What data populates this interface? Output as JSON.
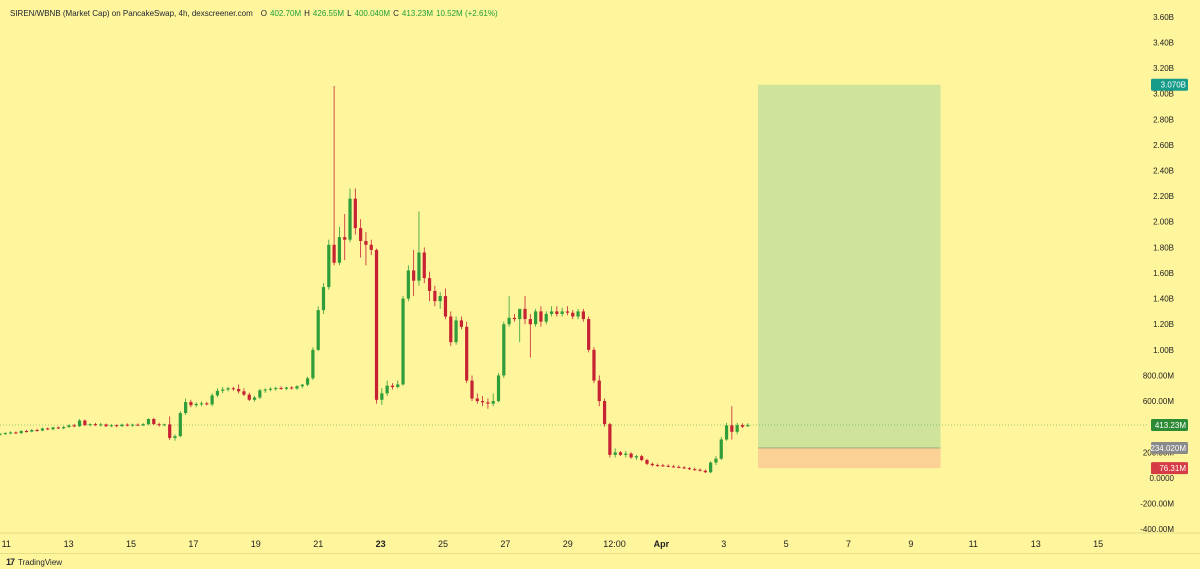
{
  "legend": {
    "pair": "SIREN/WBNB (Market Cap) on PancakeSwap, 4h, dexscreener.com",
    "open_key": "O",
    "open_val": "402.70M",
    "high_key": "H",
    "high_val": "426.55M",
    "low_key": "L",
    "low_val": "400.040M",
    "close_key": "C",
    "close_val": "413.23M",
    "change": "10.52M (+2.61%)"
  },
  "footer": {
    "logo": "17",
    "brand": "TradingView"
  },
  "colors": {
    "background": "#fef59c",
    "up": "#2f9e3a",
    "down": "#c62233",
    "profit_zone": "#cfe39b",
    "loss_zone": "#fbd195",
    "badge_target": "#179c8a",
    "badge_price": "#2e8b35",
    "badge_entry": "#8a8a8a",
    "badge_stop": "#d63c45"
  },
  "chart_data": {
    "type": "candlestick",
    "y_unit": "market cap (USD)",
    "ylim": [
      -430000000,
      3700000000
    ],
    "y_ticks": [
      {
        "v": 3600000000,
        "label": "3.60B"
      },
      {
        "v": 3400000000,
        "label": "3.40B"
      },
      {
        "v": 3200000000,
        "label": "3.20B"
      },
      {
        "v": 3000000000,
        "label": "3.00B"
      },
      {
        "v": 2800000000,
        "label": "2.80B"
      },
      {
        "v": 2600000000,
        "label": "2.60B"
      },
      {
        "v": 2400000000,
        "label": "2.40B"
      },
      {
        "v": 2200000000,
        "label": "2.20B"
      },
      {
        "v": 2000000000,
        "label": "2.00B"
      },
      {
        "v": 1800000000,
        "label": "1.80B"
      },
      {
        "v": 1600000000,
        "label": "1.60B"
      },
      {
        "v": 1400000000,
        "label": "1.40B"
      },
      {
        "v": 1200000000,
        "label": "1.20B"
      },
      {
        "v": 1000000000,
        "label": "1.00B"
      },
      {
        "v": 800000000,
        "label": "800.00M"
      },
      {
        "v": 600000000,
        "label": "600.00M"
      },
      {
        "v": 200000000,
        "label": "200.00M"
      },
      {
        "v": 0,
        "label": "0.0000"
      },
      {
        "v": -200000000,
        "label": "-200.00M"
      },
      {
        "v": -400000000,
        "label": "-400.00M"
      }
    ],
    "x_ticks": [
      {
        "day": 11,
        "label": "11"
      },
      {
        "day": 13,
        "label": "13"
      },
      {
        "day": 15,
        "label": "15"
      },
      {
        "day": 17,
        "label": "17"
      },
      {
        "day": 19,
        "label": "19"
      },
      {
        "day": 21,
        "label": "21"
      },
      {
        "day": 23,
        "label": "23",
        "bold": true
      },
      {
        "day": 25,
        "label": "25"
      },
      {
        "day": 27,
        "label": "27"
      },
      {
        "day": 29,
        "label": "29"
      },
      {
        "day": 30.5,
        "label": "12:00"
      },
      {
        "day": 32,
        "label": "Apr",
        "bold": true
      },
      {
        "day": 34,
        "label": "3"
      },
      {
        "day": 36,
        "label": "5"
      },
      {
        "day": 38,
        "label": "7"
      },
      {
        "day": 40,
        "label": "9"
      },
      {
        "day": 42,
        "label": "11"
      },
      {
        "day": 44,
        "label": "13"
      },
      {
        "day": 46,
        "label": "15"
      }
    ],
    "x_range_days": [
      10.8,
      47.6
    ],
    "candle_interval_days": 0.1667,
    "candles": [
      {
        "d": 10.8,
        "o": 340,
        "h": 352,
        "l": 330,
        "c": 345
      },
      {
        "d": 10.97,
        "o": 345,
        "h": 356,
        "l": 336,
        "c": 350
      },
      {
        "d": 11.14,
        "o": 350,
        "h": 364,
        "l": 340,
        "c": 355
      },
      {
        "d": 11.31,
        "o": 355,
        "h": 362,
        "l": 344,
        "c": 350
      },
      {
        "d": 11.48,
        "o": 350,
        "h": 372,
        "l": 342,
        "c": 366
      },
      {
        "d": 11.65,
        "o": 366,
        "h": 376,
        "l": 354,
        "c": 362
      },
      {
        "d": 11.82,
        "o": 362,
        "h": 382,
        "l": 356,
        "c": 374
      },
      {
        "d": 11.99,
        "o": 374,
        "h": 384,
        "l": 362,
        "c": 370
      },
      {
        "d": 12.16,
        "o": 370,
        "h": 392,
        "l": 364,
        "c": 386
      },
      {
        "d": 12.33,
        "o": 386,
        "h": 394,
        "l": 374,
        "c": 380
      },
      {
        "d": 12.5,
        "o": 380,
        "h": 400,
        "l": 372,
        "c": 394
      },
      {
        "d": 12.67,
        "o": 394,
        "h": 402,
        "l": 382,
        "c": 388
      },
      {
        "d": 12.84,
        "o": 388,
        "h": 404,
        "l": 380,
        "c": 398
      },
      {
        "d": 13.01,
        "o": 398,
        "h": 418,
        "l": 390,
        "c": 410
      },
      {
        "d": 13.18,
        "o": 410,
        "h": 422,
        "l": 396,
        "c": 404
      },
      {
        "d": 13.35,
        "o": 404,
        "h": 460,
        "l": 398,
        "c": 448
      },
      {
        "d": 13.52,
        "o": 448,
        "h": 456,
        "l": 406,
        "c": 412
      },
      {
        "d": 13.69,
        "o": 412,
        "h": 426,
        "l": 402,
        "c": 420
      },
      {
        "d": 13.86,
        "o": 420,
        "h": 430,
        "l": 404,
        "c": 414
      },
      {
        "d": 14.03,
        "o": 414,
        "h": 430,
        "l": 402,
        "c": 418
      },
      {
        "d": 14.2,
        "o": 418,
        "h": 424,
        "l": 398,
        "c": 404
      },
      {
        "d": 14.37,
        "o": 404,
        "h": 420,
        "l": 396,
        "c": 412
      },
      {
        "d": 14.54,
        "o": 412,
        "h": 418,
        "l": 396,
        "c": 404
      },
      {
        "d": 14.71,
        "o": 404,
        "h": 424,
        "l": 398,
        "c": 416
      },
      {
        "d": 14.88,
        "o": 416,
        "h": 426,
        "l": 402,
        "c": 408
      },
      {
        "d": 15.05,
        "o": 408,
        "h": 424,
        "l": 400,
        "c": 416
      },
      {
        "d": 15.22,
        "o": 416,
        "h": 426,
        "l": 404,
        "c": 410
      },
      {
        "d": 15.39,
        "o": 410,
        "h": 428,
        "l": 404,
        "c": 420
      },
      {
        "d": 15.56,
        "o": 420,
        "h": 466,
        "l": 412,
        "c": 460
      },
      {
        "d": 15.73,
        "o": 460,
        "h": 470,
        "l": 414,
        "c": 420
      },
      {
        "d": 15.9,
        "o": 420,
        "h": 432,
        "l": 400,
        "c": 412
      },
      {
        "d": 16.07,
        "o": 412,
        "h": 424,
        "l": 404,
        "c": 418
      },
      {
        "d": 16.24,
        "o": 418,
        "h": 480,
        "l": 296,
        "c": 312
      },
      {
        "d": 16.41,
        "o": 312,
        "h": 340,
        "l": 290,
        "c": 326
      },
      {
        "d": 16.58,
        "o": 326,
        "h": 520,
        "l": 318,
        "c": 506
      },
      {
        "d": 16.75,
        "o": 506,
        "h": 620,
        "l": 492,
        "c": 592
      },
      {
        "d": 16.92,
        "o": 592,
        "h": 610,
        "l": 552,
        "c": 568
      },
      {
        "d": 17.09,
        "o": 568,
        "h": 590,
        "l": 552,
        "c": 578
      },
      {
        "d": 17.26,
        "o": 578,
        "h": 598,
        "l": 560,
        "c": 582
      },
      {
        "d": 17.43,
        "o": 582,
        "h": 594,
        "l": 566,
        "c": 574
      },
      {
        "d": 17.6,
        "o": 574,
        "h": 660,
        "l": 560,
        "c": 644
      },
      {
        "d": 17.77,
        "o": 644,
        "h": 700,
        "l": 630,
        "c": 680
      },
      {
        "d": 17.94,
        "o": 680,
        "h": 710,
        "l": 662,
        "c": 690
      },
      {
        "d": 18.11,
        "o": 690,
        "h": 712,
        "l": 676,
        "c": 700
      },
      {
        "d": 18.28,
        "o": 700,
        "h": 712,
        "l": 680,
        "c": 694
      },
      {
        "d": 18.45,
        "o": 694,
        "h": 730,
        "l": 660,
        "c": 676
      },
      {
        "d": 18.62,
        "o": 676,
        "h": 700,
        "l": 640,
        "c": 650
      },
      {
        "d": 18.79,
        "o": 650,
        "h": 666,
        "l": 600,
        "c": 610
      },
      {
        "d": 18.96,
        "o": 610,
        "h": 640,
        "l": 596,
        "c": 628
      },
      {
        "d": 19.13,
        "o": 628,
        "h": 696,
        "l": 616,
        "c": 684
      },
      {
        "d": 19.3,
        "o": 684,
        "h": 700,
        "l": 664,
        "c": 690
      },
      {
        "d": 19.47,
        "o": 690,
        "h": 708,
        "l": 676,
        "c": 696
      },
      {
        "d": 19.64,
        "o": 696,
        "h": 712,
        "l": 680,
        "c": 702
      },
      {
        "d": 19.81,
        "o": 702,
        "h": 716,
        "l": 688,
        "c": 696
      },
      {
        "d": 19.98,
        "o": 696,
        "h": 712,
        "l": 684,
        "c": 706
      },
      {
        "d": 20.15,
        "o": 706,
        "h": 716,
        "l": 690,
        "c": 698
      },
      {
        "d": 20.32,
        "o": 698,
        "h": 724,
        "l": 688,
        "c": 716
      },
      {
        "d": 20.49,
        "o": 716,
        "h": 734,
        "l": 700,
        "c": 728
      },
      {
        "d": 20.66,
        "o": 728,
        "h": 790,
        "l": 716,
        "c": 778
      },
      {
        "d": 20.83,
        "o": 778,
        "h": 1020,
        "l": 764,
        "c": 1000
      },
      {
        "d": 21.0,
        "o": 1000,
        "h": 1340,
        "l": 990,
        "c": 1310
      },
      {
        "d": 21.17,
        "o": 1310,
        "h": 1520,
        "l": 1280,
        "c": 1490
      },
      {
        "d": 21.34,
        "o": 1490,
        "h": 1860,
        "l": 1470,
        "c": 1820
      },
      {
        "d": 21.51,
        "o": 1820,
        "h": 3060,
        "l": 1660,
        "c": 1680
      },
      {
        "d": 21.68,
        "o": 1680,
        "h": 1960,
        "l": 1660,
        "c": 1880
      },
      {
        "d": 21.85,
        "o": 1880,
        "h": 2060,
        "l": 1700,
        "c": 1860
      },
      {
        "d": 22.02,
        "o": 1860,
        "h": 2260,
        "l": 1840,
        "c": 2180
      },
      {
        "d": 22.19,
        "o": 2180,
        "h": 2260,
        "l": 1900,
        "c": 1950
      },
      {
        "d": 22.36,
        "o": 1950,
        "h": 2020,
        "l": 1720,
        "c": 1850
      },
      {
        "d": 22.53,
        "o": 1850,
        "h": 1920,
        "l": 1660,
        "c": 1820
      },
      {
        "d": 22.7,
        "o": 1820,
        "h": 1860,
        "l": 1740,
        "c": 1780
      },
      {
        "d": 22.87,
        "o": 1780,
        "h": 1790,
        "l": 580,
        "c": 610
      },
      {
        "d": 23.04,
        "o": 610,
        "h": 700,
        "l": 570,
        "c": 660
      },
      {
        "d": 23.21,
        "o": 660,
        "h": 760,
        "l": 640,
        "c": 720
      },
      {
        "d": 23.38,
        "o": 720,
        "h": 740,
        "l": 690,
        "c": 710
      },
      {
        "d": 23.55,
        "o": 710,
        "h": 760,
        "l": 700,
        "c": 730
      },
      {
        "d": 23.72,
        "o": 730,
        "h": 1420,
        "l": 720,
        "c": 1400
      },
      {
        "d": 23.89,
        "o": 1400,
        "h": 1660,
        "l": 1380,
        "c": 1620
      },
      {
        "d": 24.06,
        "o": 1620,
        "h": 1780,
        "l": 1420,
        "c": 1540
      },
      {
        "d": 24.23,
        "o": 1540,
        "h": 2080,
        "l": 1500,
        "c": 1760
      },
      {
        "d": 24.4,
        "o": 1760,
        "h": 1800,
        "l": 1520,
        "c": 1560
      },
      {
        "d": 24.57,
        "o": 1560,
        "h": 1610,
        "l": 1380,
        "c": 1460
      },
      {
        "d": 24.74,
        "o": 1460,
        "h": 1500,
        "l": 1340,
        "c": 1380
      },
      {
        "d": 24.91,
        "o": 1380,
        "h": 1450,
        "l": 1320,
        "c": 1420
      },
      {
        "d": 25.08,
        "o": 1420,
        "h": 1480,
        "l": 1240,
        "c": 1260
      },
      {
        "d": 25.25,
        "o": 1260,
        "h": 1300,
        "l": 1030,
        "c": 1060
      },
      {
        "d": 25.42,
        "o": 1060,
        "h": 1260,
        "l": 1040,
        "c": 1230
      },
      {
        "d": 25.59,
        "o": 1230,
        "h": 1260,
        "l": 1160,
        "c": 1180
      },
      {
        "d": 25.76,
        "o": 1180,
        "h": 1220,
        "l": 740,
        "c": 760
      },
      {
        "d": 25.93,
        "o": 760,
        "h": 800,
        "l": 600,
        "c": 620
      },
      {
        "d": 26.1,
        "o": 620,
        "h": 660,
        "l": 580,
        "c": 600
      },
      {
        "d": 26.27,
        "o": 600,
        "h": 640,
        "l": 560,
        "c": 590
      },
      {
        "d": 26.44,
        "o": 590,
        "h": 620,
        "l": 540,
        "c": 580
      },
      {
        "d": 26.61,
        "o": 580,
        "h": 660,
        "l": 560,
        "c": 600
      },
      {
        "d": 26.78,
        "o": 600,
        "h": 820,
        "l": 590,
        "c": 800
      },
      {
        "d": 26.95,
        "o": 800,
        "h": 1220,
        "l": 780,
        "c": 1200
      },
      {
        "d": 27.12,
        "o": 1200,
        "h": 1420,
        "l": 1180,
        "c": 1250
      },
      {
        "d": 27.29,
        "o": 1250,
        "h": 1280,
        "l": 1220,
        "c": 1240
      },
      {
        "d": 27.46,
        "o": 1240,
        "h": 1300,
        "l": 1060,
        "c": 1320
      },
      {
        "d": 27.63,
        "o": 1320,
        "h": 1420,
        "l": 1200,
        "c": 1240
      },
      {
        "d": 27.8,
        "o": 1240,
        "h": 1280,
        "l": 940,
        "c": 1200
      },
      {
        "d": 27.97,
        "o": 1200,
        "h": 1320,
        "l": 1180,
        "c": 1300
      },
      {
        "d": 28.14,
        "o": 1300,
        "h": 1340,
        "l": 1180,
        "c": 1220
      },
      {
        "d": 28.31,
        "o": 1220,
        "h": 1300,
        "l": 1200,
        "c": 1280
      },
      {
        "d": 28.48,
        "o": 1280,
        "h": 1340,
        "l": 1260,
        "c": 1300
      },
      {
        "d": 28.65,
        "o": 1300,
        "h": 1340,
        "l": 1260,
        "c": 1280
      },
      {
        "d": 28.82,
        "o": 1280,
        "h": 1330,
        "l": 1260,
        "c": 1300
      },
      {
        "d": 28.99,
        "o": 1300,
        "h": 1340,
        "l": 1270,
        "c": 1290
      },
      {
        "d": 29.16,
        "o": 1290,
        "h": 1310,
        "l": 1240,
        "c": 1260
      },
      {
        "d": 29.33,
        "o": 1260,
        "h": 1320,
        "l": 1240,
        "c": 1300
      },
      {
        "d": 29.5,
        "o": 1300,
        "h": 1320,
        "l": 1220,
        "c": 1240
      },
      {
        "d": 29.67,
        "o": 1240,
        "h": 1260,
        "l": 980,
        "c": 1000
      },
      {
        "d": 29.84,
        "o": 1000,
        "h": 1020,
        "l": 740,
        "c": 760
      },
      {
        "d": 30.01,
        "o": 760,
        "h": 800,
        "l": 560,
        "c": 600
      },
      {
        "d": 30.18,
        "o": 600,
        "h": 620,
        "l": 400,
        "c": 420
      },
      {
        "d": 30.35,
        "o": 420,
        "h": 430,
        "l": 160,
        "c": 180
      },
      {
        "d": 30.52,
        "o": 180,
        "h": 230,
        "l": 160,
        "c": 200
      },
      {
        "d": 30.69,
        "o": 200,
        "h": 210,
        "l": 170,
        "c": 180
      },
      {
        "d": 30.86,
        "o": 180,
        "h": 210,
        "l": 160,
        "c": 190
      },
      {
        "d": 31.03,
        "o": 190,
        "h": 200,
        "l": 150,
        "c": 160
      },
      {
        "d": 31.2,
        "o": 160,
        "h": 180,
        "l": 140,
        "c": 170
      },
      {
        "d": 31.37,
        "o": 170,
        "h": 180,
        "l": 130,
        "c": 140
      },
      {
        "d": 31.54,
        "o": 140,
        "h": 150,
        "l": 100,
        "c": 110
      },
      {
        "d": 31.71,
        "o": 110,
        "h": 120,
        "l": 90,
        "c": 100
      },
      {
        "d": 31.88,
        "o": 100,
        "h": 112,
        "l": 88,
        "c": 98
      },
      {
        "d": 32.05,
        "o": 98,
        "h": 110,
        "l": 86,
        "c": 94
      },
      {
        "d": 32.22,
        "o": 94,
        "h": 106,
        "l": 84,
        "c": 90
      },
      {
        "d": 32.39,
        "o": 90,
        "h": 102,
        "l": 80,
        "c": 86
      },
      {
        "d": 32.56,
        "o": 86,
        "h": 98,
        "l": 76,
        "c": 82
      },
      {
        "d": 32.73,
        "o": 82,
        "h": 92,
        "l": 70,
        "c": 76
      },
      {
        "d": 32.9,
        "o": 76,
        "h": 84,
        "l": 62,
        "c": 68
      },
      {
        "d": 33.07,
        "o": 68,
        "h": 80,
        "l": 56,
        "c": 64
      },
      {
        "d": 33.24,
        "o": 64,
        "h": 74,
        "l": 50,
        "c": 56
      },
      {
        "d": 33.41,
        "o": 56,
        "h": 66,
        "l": 40,
        "c": 44
      },
      {
        "d": 33.58,
        "o": 44,
        "h": 130,
        "l": 36,
        "c": 120
      },
      {
        "d": 33.75,
        "o": 120,
        "h": 170,
        "l": 100,
        "c": 150
      },
      {
        "d": 33.92,
        "o": 150,
        "h": 320,
        "l": 140,
        "c": 300
      },
      {
        "d": 34.09,
        "o": 300,
        "h": 430,
        "l": 290,
        "c": 410
      },
      {
        "d": 34.26,
        "o": 410,
        "h": 560,
        "l": 300,
        "c": 360
      },
      {
        "d": 34.43,
        "o": 360,
        "h": 430,
        "l": 340,
        "c": 412
      },
      {
        "d": 34.6,
        "o": 412,
        "h": 426,
        "l": 390,
        "c": 400
      },
      {
        "d": 34.77,
        "o": 402.7,
        "h": 426.55,
        "l": 400.04,
        "c": 413.23
      }
    ],
    "position": {
      "start_day": 35.1,
      "end_day": 40.95,
      "target": 3070000000,
      "entry": 234020000,
      "stop": 76310000
    },
    "last_price": 413230000,
    "price_labels": {
      "target": "3.070B",
      "last": "413.23M",
      "entry": "234.020M",
      "stop": "76.31M"
    }
  }
}
